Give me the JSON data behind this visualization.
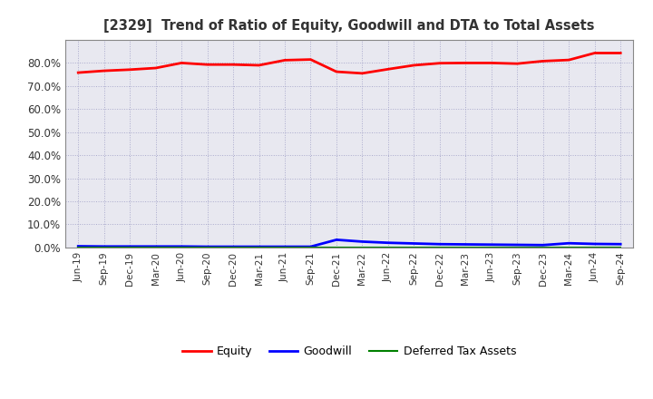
{
  "title": "[2329]  Trend of Ratio of Equity, Goodwill and DTA to Total Assets",
  "x_labels": [
    "Jun-19",
    "Sep-19",
    "Dec-19",
    "Mar-20",
    "Jun-20",
    "Sep-20",
    "Dec-20",
    "Mar-21",
    "Jun-21",
    "Sep-21",
    "Dec-21",
    "Mar-22",
    "Jun-22",
    "Sep-22",
    "Dec-22",
    "Mar-23",
    "Jun-23",
    "Sep-23",
    "Dec-23",
    "Mar-24",
    "Jun-24",
    "Sep-24"
  ],
  "equity": [
    0.758,
    0.766,
    0.771,
    0.778,
    0.8,
    0.793,
    0.793,
    0.79,
    0.812,
    0.815,
    0.762,
    0.755,
    0.773,
    0.79,
    0.799,
    0.8,
    0.8,
    0.797,
    0.808,
    0.813,
    0.843,
    0.843
  ],
  "goodwill": [
    0.005,
    0.004,
    0.004,
    0.004,
    0.004,
    0.003,
    0.003,
    0.003,
    0.003,
    0.003,
    0.033,
    0.025,
    0.02,
    0.017,
    0.014,
    0.013,
    0.012,
    0.011,
    0.01,
    0.018,
    0.015,
    0.014
  ],
  "dta": [
    0.001,
    0.001,
    0.001,
    0.001,
    0.001,
    0.001,
    0.001,
    0.001,
    0.001,
    0.001,
    0.001,
    0.001,
    0.001,
    0.001,
    0.001,
    0.001,
    0.001,
    0.001,
    0.001,
    0.001,
    0.001,
    0.001
  ],
  "equity_color": "#FF0000",
  "goodwill_color": "#0000FF",
  "dta_color": "#008000",
  "ylim": [
    0.0,
    0.9
  ],
  "yticks": [
    0.0,
    0.1,
    0.2,
    0.3,
    0.4,
    0.5,
    0.6,
    0.7,
    0.8
  ],
  "background_color": "#FFFFFF",
  "plot_bg_color": "#E8E8F0",
  "grid_color": "#AAAACC",
  "legend_labels": [
    "Equity",
    "Goodwill",
    "Deferred Tax Assets"
  ],
  "title_color": "#333333"
}
